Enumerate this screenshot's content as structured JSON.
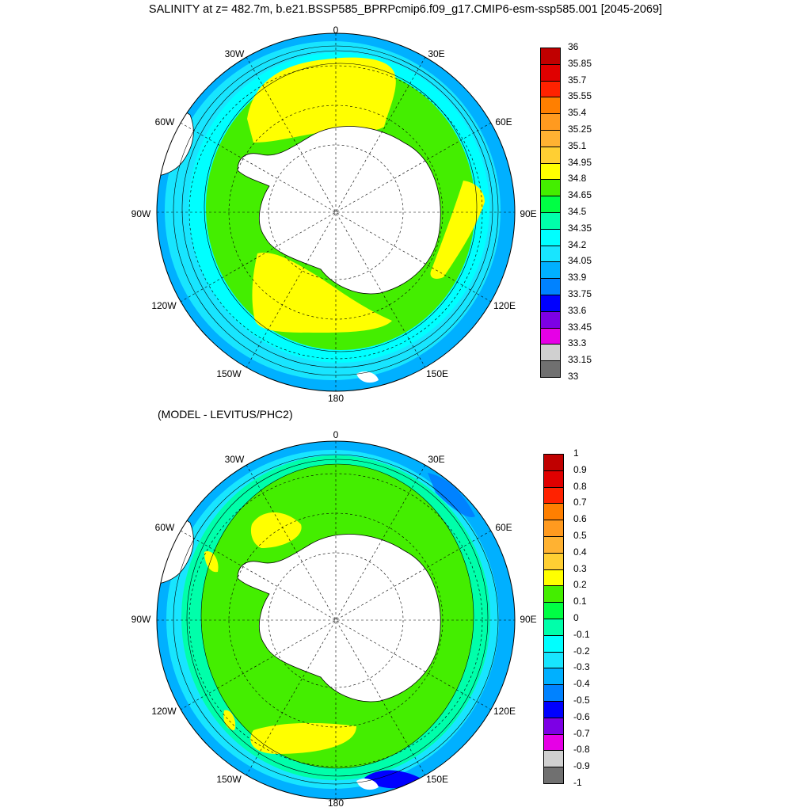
{
  "title": "SALINITY at z= 482.7m, b.e21.BSSP585_BPRPcmip6.f09_g17.CMIP6-esm-ssp585.001 [2045-2069]",
  "subtitle": "(MODEL - LEVITUS/PHC2)",
  "longitude_labels": {
    "top": "0",
    "top_left": "30W",
    "top_right": "30E",
    "upper_left": "60W",
    "upper_right": "60E",
    "left": "90W",
    "right": "90E",
    "lower_left": "120W",
    "lower_right": "120E",
    "bottom_left": "150W",
    "bottom_right": "150E",
    "bottom": "180"
  },
  "panels": [
    {
      "name": "salinity",
      "colorbar_labels": [
        "36",
        "35.85",
        "35.7",
        "35.55",
        "35.4",
        "35.25",
        "35.1",
        "34.95",
        "34.8",
        "34.65",
        "34.5",
        "34.35",
        "34.2",
        "34.05",
        "33.9",
        "33.75",
        "33.6",
        "33.45",
        "33.3",
        "33.15",
        "33"
      ],
      "colorbar_colors": [
        "#c00000",
        "#e00000",
        "#ff2200",
        "#ff7f00",
        "#ff9a1f",
        "#ffb232",
        "#ffcf33",
        "#ffff00",
        "#44ee00",
        "#00ff44",
        "#00ffaa",
        "#00ffff",
        "#18e5ff",
        "#00b0ff",
        "#0082ff",
        "#0000ff",
        "#7d00e5",
        "#e600e6",
        "#d0d0d0",
        "#707070"
      ]
    },
    {
      "name": "difference",
      "colorbar_labels": [
        "1",
        "0.9",
        "0.8",
        "0.7",
        "0.6",
        "0.5",
        "0.4",
        "0.3",
        "0.2",
        "0.1",
        "0",
        "-0.1",
        "-0.2",
        "-0.3",
        "-0.4",
        "-0.5",
        "-0.6",
        "-0.7",
        "-0.8",
        "-0.9",
        "-1"
      ],
      "colorbar_colors": [
        "#c00000",
        "#e00000",
        "#ff2200",
        "#ff7f00",
        "#ff9a1f",
        "#ffb232",
        "#ffcf33",
        "#ffff00",
        "#44ee00",
        "#00ff44",
        "#00ffaa",
        "#00ffff",
        "#18e5ff",
        "#00b0ff",
        "#0082ff",
        "#0000ff",
        "#7d00e5",
        "#e600e6",
        "#d0d0d0",
        "#707070"
      ]
    }
  ]
}
